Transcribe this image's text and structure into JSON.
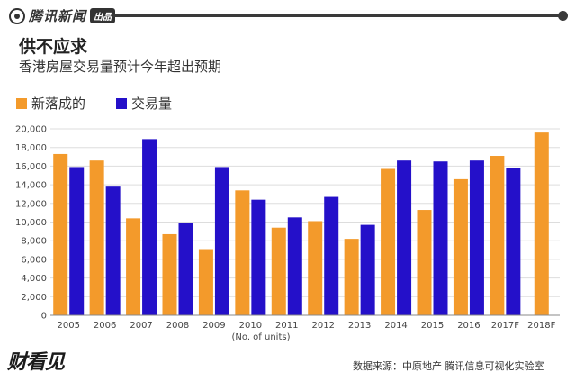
{
  "brand": {
    "name": "腾讯新闻",
    "badge": "出品"
  },
  "watermark": "财看见",
  "source": "数据来源：中原地产 腾讯信息可视化实验室",
  "colors": {
    "new_completions": "#f39a2b",
    "transactions": "#2410c9",
    "brand": "#3a3a3a"
  },
  "chart_data": {
    "type": "bar",
    "title": "供不应求",
    "subtitle": "香港房屋交易量预计今年超出预期",
    "xlabel": "(No. of units)",
    "ylabel": "",
    "ylim": [
      0,
      20000
    ],
    "yticks": [
      "0",
      "2,000",
      "4,000",
      "6,000",
      "8,000",
      "10,000",
      "12,000",
      "14,000",
      "16,000",
      "18,000",
      "20,000"
    ],
    "ytick_values": [
      0,
      2000,
      4000,
      6000,
      8000,
      10000,
      12000,
      14000,
      16000,
      18000,
      20000
    ],
    "grid": true,
    "legend_position": "top-left",
    "categories": [
      "2005",
      "2006",
      "2007",
      "2008",
      "2009",
      "2010",
      "2011",
      "2012",
      "2013",
      "2014",
      "2015",
      "2016",
      "2017F",
      "2018F"
    ],
    "series": [
      {
        "name": "新落成的",
        "values": [
          17300,
          16600,
          10400,
          8700,
          7100,
          13400,
          9400,
          10100,
          8200,
          15700,
          11300,
          14600,
          17100,
          19600
        ]
      },
      {
        "name": "交易量",
        "values": [
          15900,
          13800,
          18900,
          9900,
          15900,
          12400,
          10500,
          12700,
          9700,
          16600,
          16500,
          16600,
          15800,
          null
        ]
      }
    ]
  }
}
